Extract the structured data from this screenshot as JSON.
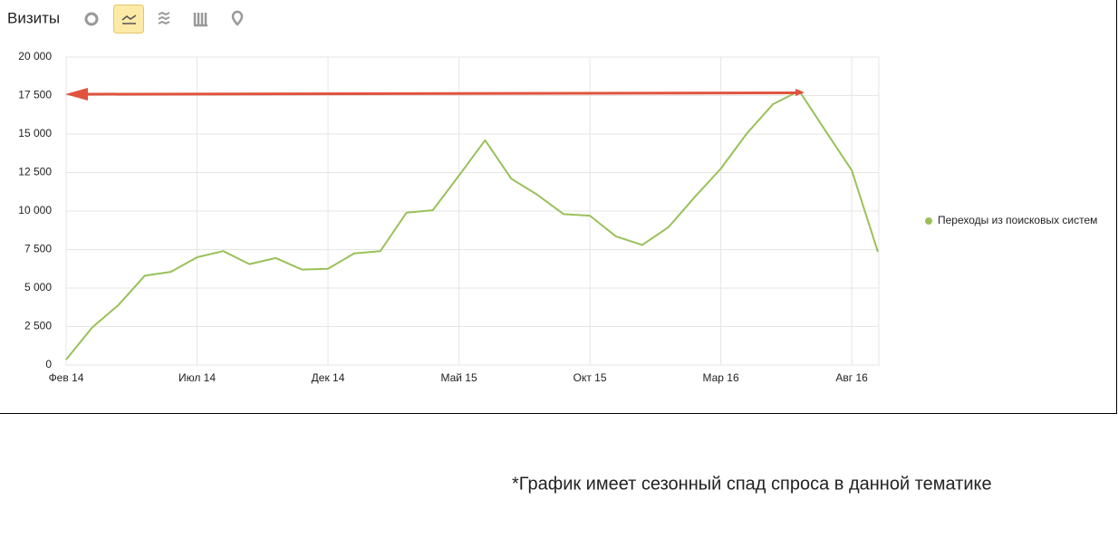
{
  "toolbar": {
    "title": "Визиты"
  },
  "chart_data": {
    "type": "line",
    "categories": [
      "Фев 14",
      null,
      null,
      null,
      null,
      "Июл 14",
      null,
      null,
      null,
      null,
      "Дек 14",
      null,
      null,
      null,
      null,
      "Май 15",
      null,
      null,
      null,
      null,
      "Окт 15",
      null,
      null,
      null,
      null,
      "Мар 16",
      null,
      null,
      null,
      null,
      "Авг 16",
      null
    ],
    "series": [
      {
        "name": "Переходы из поисковых систем",
        "color": "#99c15a",
        "values": [
          350,
          2450,
          3900,
          5800,
          6050,
          7000,
          7400,
          6550,
          6950,
          6200,
          6250,
          7250,
          7400,
          9900,
          10050,
          12300,
          14600,
          12100,
          11050,
          9800,
          9700,
          8350,
          7800,
          8950,
          10900,
          12750,
          15050,
          16950,
          17800,
          15200,
          12650,
          7350
        ]
      }
    ],
    "ylim": [
      0,
      20000
    ],
    "yticks": [
      0,
      {
        "value": 2500,
        "label": "2 500"
      },
      {
        "value": 5000,
        "label": "5 000"
      },
      {
        "value": 7500,
        "label": "7 500"
      },
      {
        "value": 10000,
        "label": "10 000"
      },
      {
        "value": 12500,
        "label": "12 500"
      },
      {
        "value": 15000,
        "label": "15 000"
      },
      {
        "value": 17500,
        "label": "17 500"
      },
      {
        "value": 20000,
        "label": "20 000"
      }
    ],
    "grid": true
  },
  "footnote": "*График имеет сезонный спад спроса в данной тематике"
}
